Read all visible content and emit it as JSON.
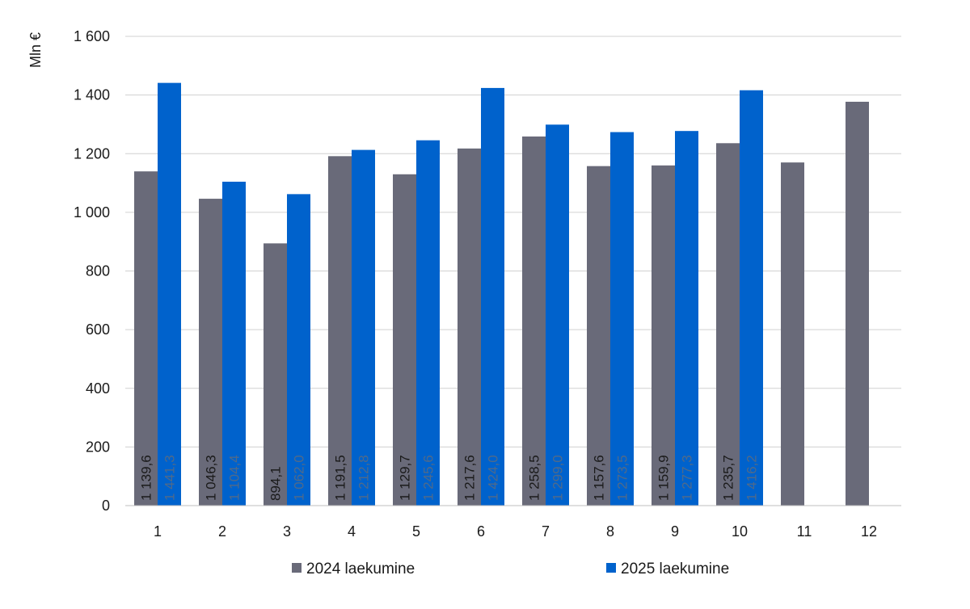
{
  "chart_data": {
    "type": "bar",
    "ylabel": "Mln €",
    "ylim": [
      0,
      1600
    ],
    "yticks": [
      0,
      200,
      400,
      600,
      800,
      1000,
      1200,
      1400,
      1600
    ],
    "ytick_labels": [
      "0",
      "200",
      "400",
      "600",
      "800",
      "1 000",
      "1 200",
      "1 400",
      "1 600"
    ],
    "grid": true,
    "legend_position": "bottom",
    "categories": [
      "1",
      "2",
      "3",
      "4",
      "5",
      "6",
      "7",
      "8",
      "9",
      "10",
      "11",
      "12"
    ],
    "series": [
      {
        "name": "2024 laekumine",
        "color": "#696a79",
        "label_color": "#1a1a1a",
        "values": [
          1139.6,
          1046.3,
          894.1,
          1191.5,
          1129.7,
          1217.6,
          1258.5,
          1157.6,
          1159.9,
          1235.7,
          1170.0,
          1377.0
        ],
        "labels": [
          "1 139,6",
          "1 046,3",
          "894,1",
          "1 191,5",
          "1 129,7",
          "1 217,6",
          "1 258,5",
          "1 157,6",
          "1 159,9",
          "1 235,7",
          "",
          ""
        ]
      },
      {
        "name": "2025 laekumine",
        "color": "#0062cc",
        "label_color": "#4f6a8a",
        "values": [
          1441.3,
          1104.4,
          1062.0,
          1212.8,
          1245.6,
          1424.0,
          1299.0,
          1273.5,
          1277.3,
          1416.2,
          null,
          null
        ],
        "labels": [
          "1 441,3",
          "1 104,4",
          "1 062,0",
          "1 212,8",
          "1 245,6",
          "1 424,0",
          "1 299,0",
          "1 273,5",
          "1 277,3",
          "1 416,2",
          "",
          ""
        ]
      }
    ]
  }
}
